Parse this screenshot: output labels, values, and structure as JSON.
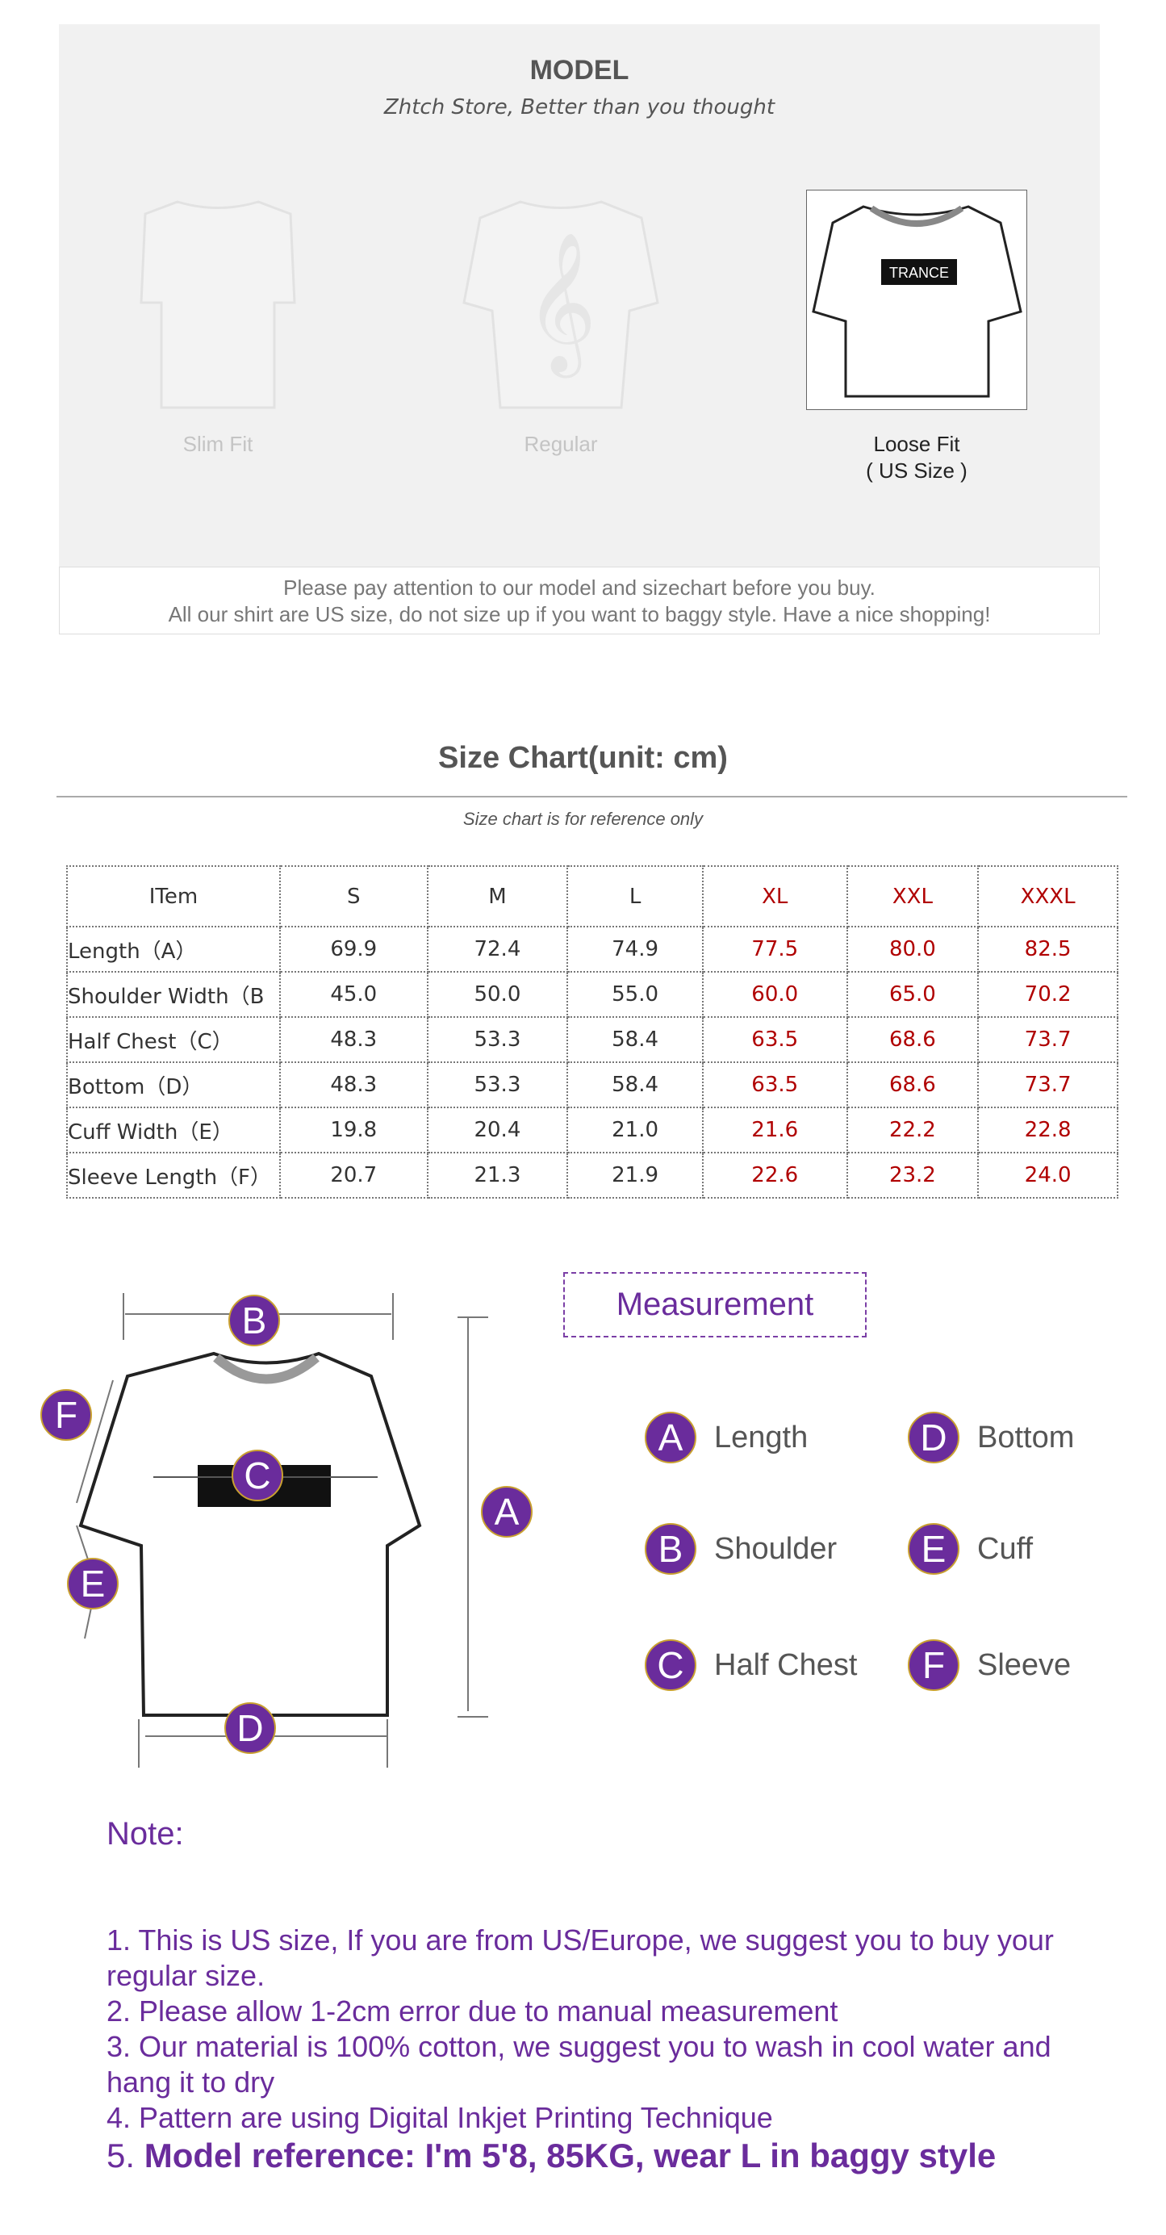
{
  "model": {
    "title": "MODEL",
    "subtitle": "Zhtch Store, Better than you thought",
    "fits": [
      {
        "label": "Slim Fit"
      },
      {
        "label": "Regular"
      },
      {
        "label": "Loose Fit",
        "sub": "( US Size )"
      }
    ],
    "notice": [
      "Please pay attention to our model and sizechart before you buy.",
      "All our shirt are US size, do not size up if you want to baggy style. Have a nice shopping!"
    ]
  },
  "size_chart": {
    "title": "Size Chart(unit: cm)",
    "subtitle": "Size chart is for reference only",
    "headers": [
      "ITem",
      "S",
      "M",
      "L",
      "XL",
      "XXL",
      "XXXL"
    ],
    "rows": [
      [
        "Length（A）",
        "69.9",
        "72.4",
        "74.9",
        "77.5",
        "80.0",
        "82.5"
      ],
      [
        "Shoulder Width（B",
        "45.0",
        "50.0",
        "55.0",
        "60.0",
        "65.0",
        "70.2"
      ],
      [
        "Half Chest（C）",
        "48.3",
        "53.3",
        "58.4",
        "63.5",
        "68.6",
        "73.7"
      ],
      [
        "Bottom（D）",
        "48.3",
        "53.3",
        "58.4",
        "63.5",
        "68.6",
        "73.7"
      ],
      [
        "Cuff Width（E）",
        "19.8",
        "20.4",
        "21.0",
        "21.6",
        "22.2",
        "22.8"
      ],
      [
        "Sleeve Length（F）",
        "20.7",
        "21.3",
        "21.9",
        "22.6",
        "23.2",
        "24.0"
      ]
    ]
  },
  "measurement": {
    "title": "Measurement",
    "legend": [
      {
        "letter": "A",
        "label": "Length"
      },
      {
        "letter": "D",
        "label": "Bottom"
      },
      {
        "letter": "B",
        "label": "Shoulder"
      },
      {
        "letter": "E",
        "label": "Cuff"
      },
      {
        "letter": "C",
        "label": "Half Chest"
      },
      {
        "letter": "F",
        "label": "Sleeve"
      }
    ],
    "print_text": "TRANCE"
  },
  "notes": {
    "title": "Note:",
    "items": [
      "1. This is US size, If you are from US/Europe, we suggest you to buy your regular size.",
      "2. Please allow 1-2cm error due to manual measurement",
      "3. Our material is 100% cotton, we suggest you to wash in cool water and hang it to dry",
      "4. Pattern are using Digital Inkjet Printing Technique"
    ],
    "final_num": "5. ",
    "final": "Model reference: I'm 5'8, 85KG, wear L in baggy style"
  },
  "colors": {
    "accent": "#6a2c9c",
    "highlight": "#b00000"
  }
}
